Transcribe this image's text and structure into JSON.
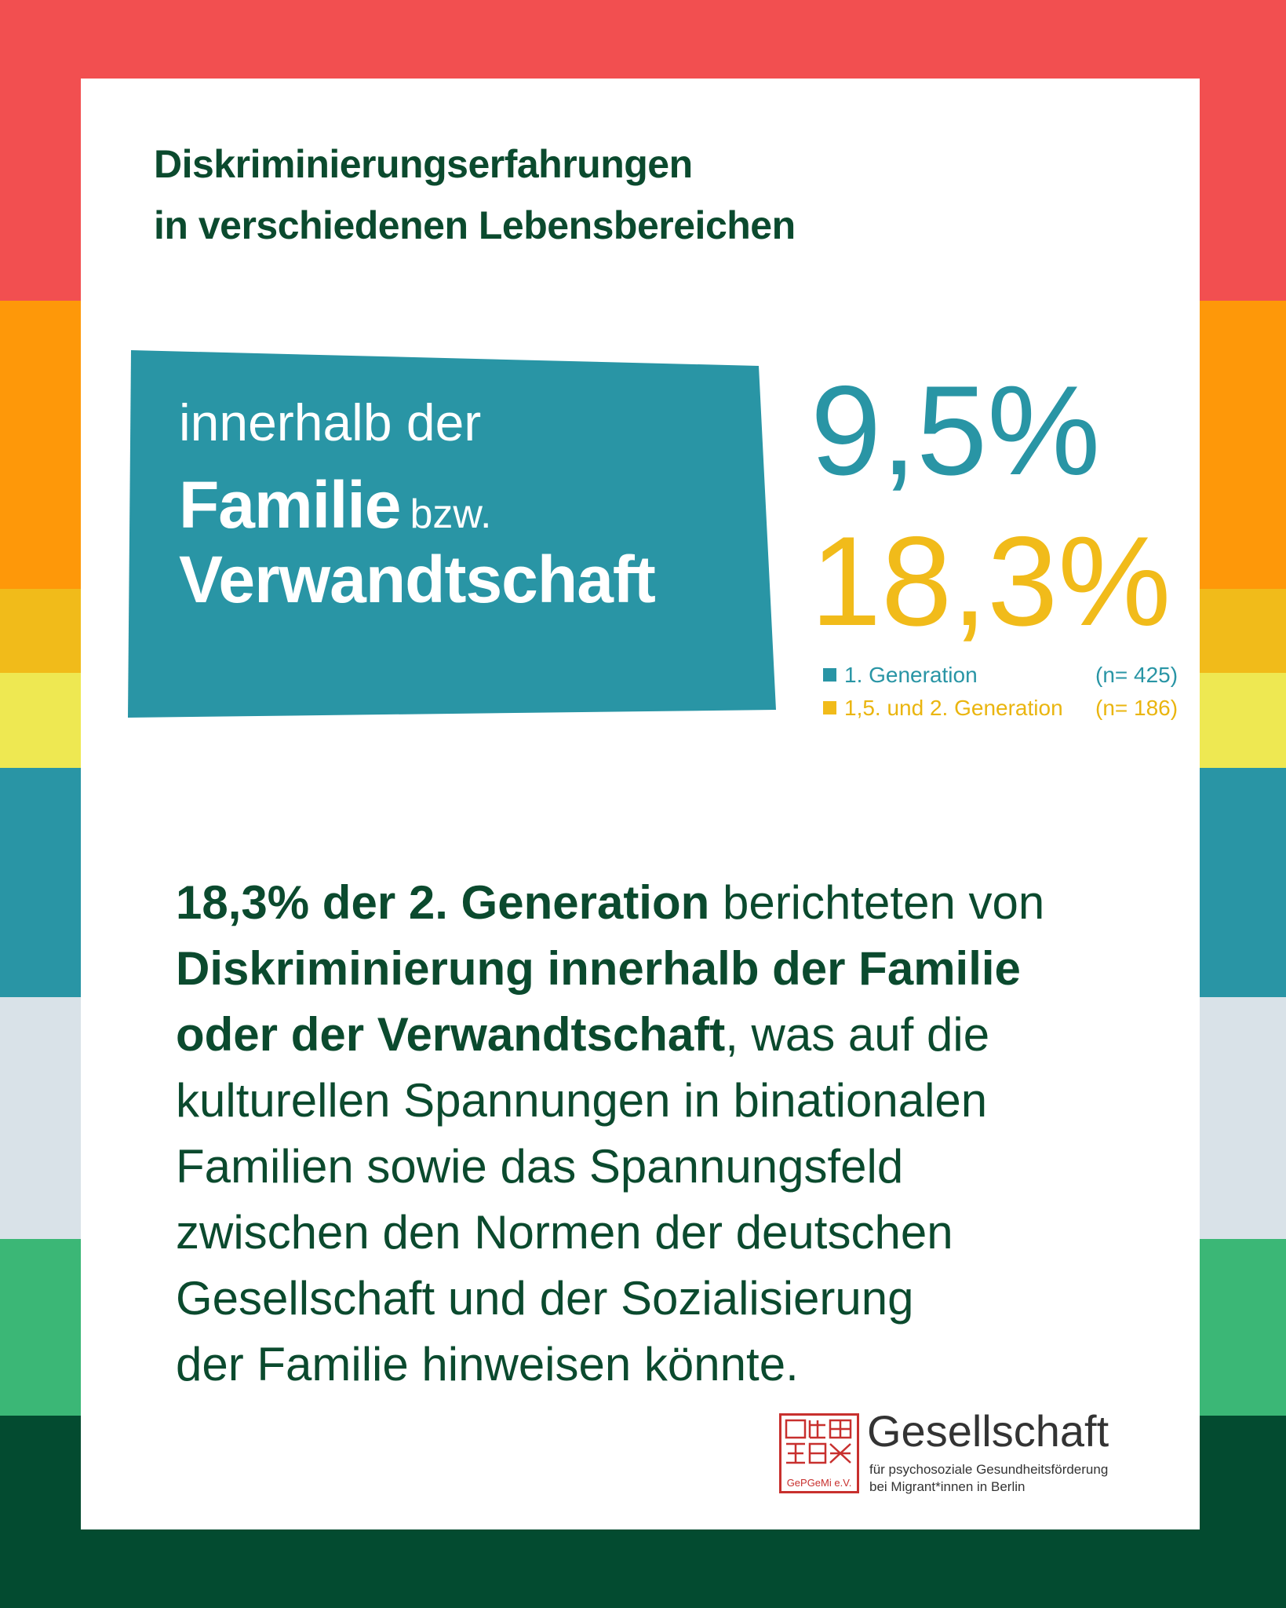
{
  "colors": {
    "stripes": [
      "#f24f50",
      "#fe9809",
      "#f1bb1a",
      "#eee852",
      "#2995a5",
      "#d9e2e8",
      "#3bb776",
      "#034b30"
    ],
    "card": "#ffffff",
    "title": "#0b4a2e",
    "banner": "#2995a5",
    "gen1": "#2995a5",
    "gen2": "#f1bb1a",
    "logo_red": "#c8302e"
  },
  "title": {
    "line1": "Diskriminierungserfahrungen",
    "line2": "in verschiedenen Lebensbereichen"
  },
  "banner": {
    "line1": "innerhalb der",
    "line2_big": "Familie",
    "line2_small": "bzw.",
    "line3": "Verwandtschaft"
  },
  "stats": {
    "gen1_value": "9,5%",
    "gen2_value": "18,3%"
  },
  "legend": [
    {
      "label": "1.  Generation",
      "n": "(n= 425)"
    },
    {
      "label": "1,5. und 2.  Generation",
      "n": "(n= 186)"
    }
  ],
  "body": {
    "l1_bold": "18,3% der 2. Generation",
    "l1_rest": " berichteten von",
    "l2_bold": "Diskriminierung innerhalb der Familie",
    "l3_bold": "oder der Verwandtschaft",
    "l3_rest": ", was auf die",
    "l4": "kulturellen Spannungen in binationalen",
    "l5": "Familien sowie das Spannungsfeld",
    "l6": "zwischen den Normen der deutschen",
    "l7": "Gesellschaft und der Sozialisierung",
    "l8": "der Familie hinweisen könnte."
  },
  "logo": {
    "seal_text": "GePGeMi e.V.",
    "name": "Gesellschaft",
    "sub1": "für psychosoziale Gesundheitsförderung",
    "sub2": "bei Migrant*innen in Berlin"
  }
}
